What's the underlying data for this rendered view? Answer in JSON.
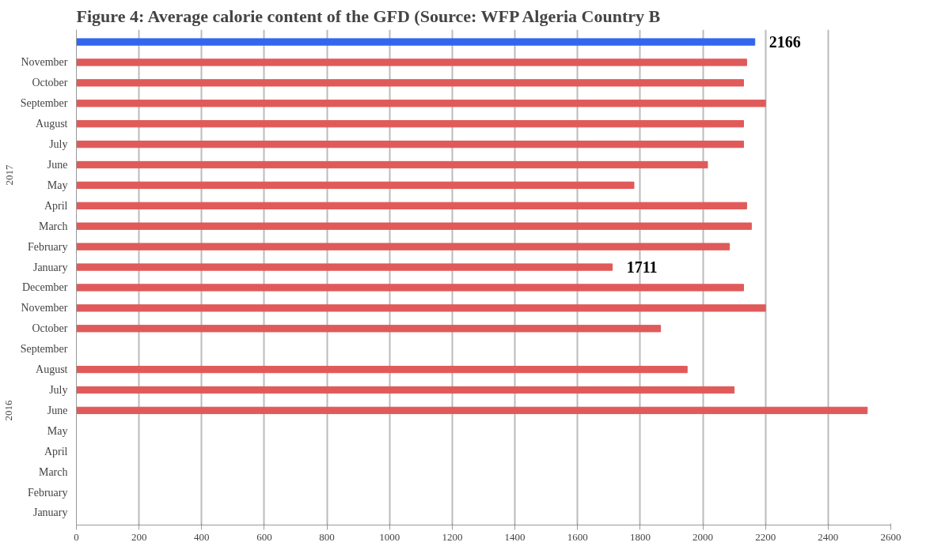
{
  "chart_data": {
    "type": "bar",
    "orientation": "horizontal",
    "title": "Figure 4: Average calorie content of the GFD (Source: WFP Algeria Country B",
    "categories": [
      null,
      "November",
      "October",
      "September",
      "August",
      "July",
      "June",
      "May",
      "April",
      "March",
      "February",
      "January",
      "December",
      "November",
      "October",
      "September",
      "August",
      "July",
      "June",
      "May",
      "April",
      "March",
      "February",
      "January"
    ],
    "values": [
      2166,
      2140,
      2130,
      2200,
      2130,
      2130,
      2015,
      1780,
      2140,
      2155,
      2085,
      1711,
      2130,
      2200,
      1865,
      null,
      1950,
      2100,
      2525,
      null,
      null,
      null,
      null,
      null
    ],
    "colors": [
      "#3366ee",
      "#e05a5a",
      "#e05a5a",
      "#e05a5a",
      "#e05a5a",
      "#e05a5a",
      "#e05a5a",
      "#e05a5a",
      "#e05a5a",
      "#e05a5a",
      "#e05a5a",
      "#e05a5a",
      "#e05a5a",
      "#e05a5a",
      "#e05a5a",
      "#e05a5a",
      "#e05a5a",
      "#e05a5a",
      "#e05a5a",
      "#e05a5a",
      "#e05a5a",
      "#e05a5a",
      "#e05a5a",
      "#e05a5a"
    ],
    "value_labels": [
      "2166",
      null,
      null,
      null,
      null,
      null,
      null,
      null,
      null,
      null,
      null,
      "1711",
      null,
      null,
      null,
      null,
      null,
      null,
      null,
      null,
      null,
      null,
      null,
      null
    ],
    "annotations": [
      "2017",
      "2016"
    ],
    "xlim": [
      0,
      2600
    ],
    "xticks": [
      0,
      200,
      400,
      600,
      800,
      1000,
      1200,
      1400,
      1600,
      1800,
      2000,
      2200,
      2400,
      2600
    ],
    "grid": "x"
  }
}
